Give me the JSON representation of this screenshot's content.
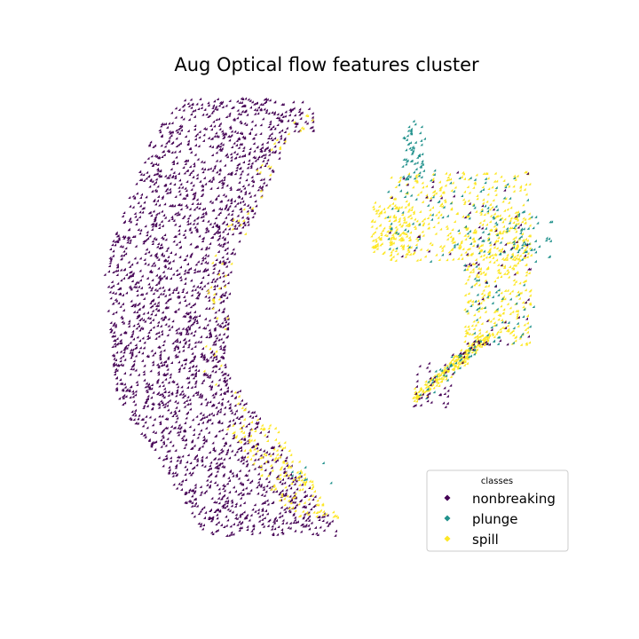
{
  "chart_data": {
    "type": "scatter",
    "title": "Aug Optical flow features cluster",
    "axes_visible": false,
    "marker": "diamond",
    "legend": {
      "title": "classes",
      "placement": "lower-right",
      "entries": [
        "nonbreaking",
        "plunge",
        "spill"
      ]
    },
    "colors": {
      "nonbreaking": "#440154",
      "plunge": "#21918c",
      "spill": "#fde725"
    },
    "series": [
      {
        "name": "nonbreaking",
        "cluster": "left crescent (dense), small groups within right cluster"
      },
      {
        "name": "plunge",
        "cluster": "right cluster rim and top, sparse"
      },
      {
        "name": "spill",
        "cluster": "right cluster (dense), lower tip and inner edge of left crescent"
      }
    ]
  }
}
